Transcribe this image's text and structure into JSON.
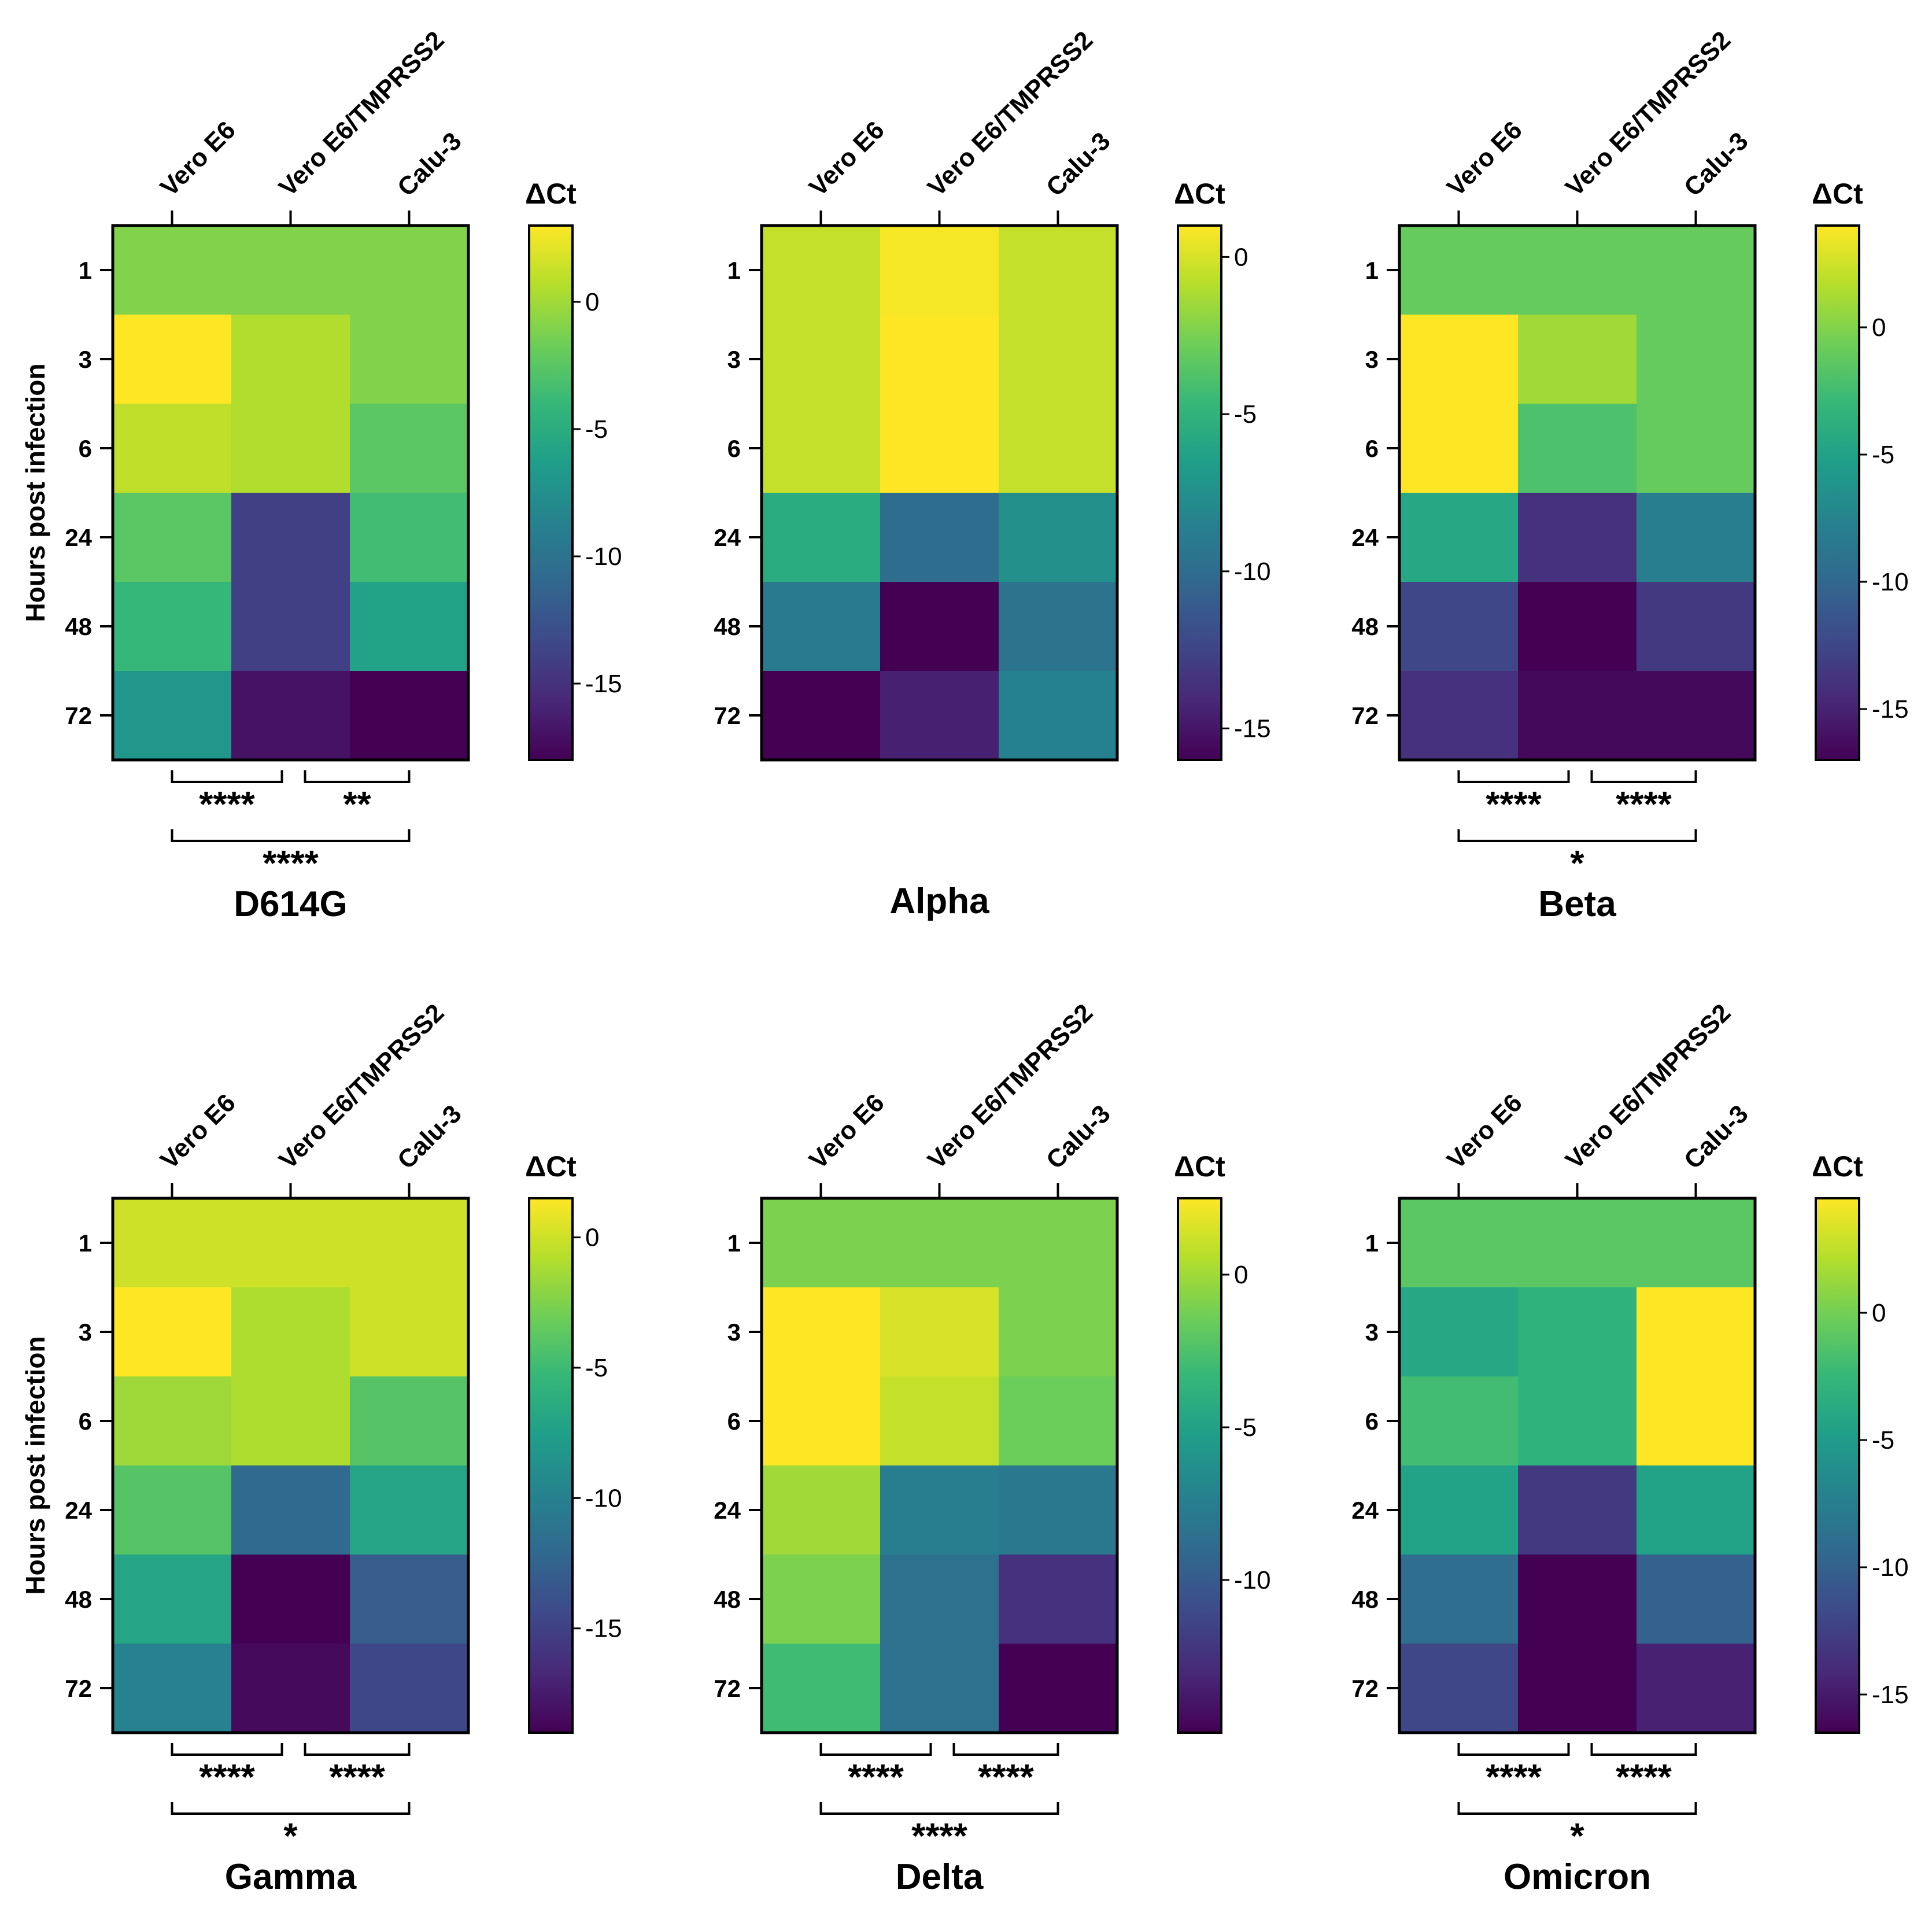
{
  "chart_data": [
    {
      "type": "heatmap",
      "title": "D614G",
      "columns": [
        "Vero E6",
        "Vero E6/TMPRSS2",
        "Calu-3"
      ],
      "rows": [
        "1",
        "3",
        "6",
        "24",
        "48",
        "72"
      ],
      "ylabel": "Hours post infection",
      "colorbar": {
        "label": "ΔCt",
        "ticks": [
          0,
          -5,
          -10,
          -15
        ],
        "range": [
          -18,
          3
        ],
        "colormap": "viridis"
      },
      "values": [
        [
          -1.0,
          -1.0,
          -1.0
        ],
        [
          3.0,
          0.5,
          -1.0
        ],
        [
          1.0,
          0.5,
          -2.5
        ],
        [
          -2.5,
          -14.0,
          -3.5
        ],
        [
          -4.0,
          -14.0,
          -6.0
        ],
        [
          -7.0,
          -17.0,
          -18.0
        ]
      ],
      "significance": [
        {
          "pair": [
            "Vero E6",
            "Vero E6/TMPRSS2"
          ],
          "label": "****"
        },
        {
          "pair": [
            "Vero E6/TMPRSS2",
            "Calu-3"
          ],
          "label": "**"
        },
        {
          "pair": [
            "Vero E6",
            "Calu-3"
          ],
          "label": "****"
        }
      ]
    },
    {
      "type": "heatmap",
      "title": "Alpha",
      "columns": [
        "Vero E6",
        "Vero E6/TMPRSS2",
        "Calu-3"
      ],
      "rows": [
        "1",
        "3",
        "6",
        "24",
        "48",
        "72"
      ],
      "ylabel": "",
      "colorbar": {
        "label": "ΔCt",
        "ticks": [
          0,
          -5,
          -10,
          -15
        ],
        "range": [
          -16,
          1
        ],
        "colormap": "viridis"
      },
      "values": [
        [
          -0.5,
          0.8,
          -0.5
        ],
        [
          -0.5,
          1.0,
          -0.5
        ],
        [
          -0.5,
          1.0,
          -0.5
        ],
        [
          -5.5,
          -10.0,
          -7.5
        ],
        [
          -9.0,
          -16.0,
          -9.5
        ],
        [
          -16.0,
          -14.5,
          -8.5
        ]
      ],
      "significance": []
    },
    {
      "type": "heatmap",
      "title": "Beta",
      "columns": [
        "Vero E6",
        "Vero E6/TMPRSS2",
        "Calu-3"
      ],
      "rows": [
        "1",
        "3",
        "6",
        "24",
        "48",
        "72"
      ],
      "ylabel": "",
      "colorbar": {
        "label": "ΔCt",
        "ticks": [
          0,
          -5,
          -10,
          -15
        ],
        "range": [
          -17,
          4
        ],
        "colormap": "viridis"
      },
      "values": [
        [
          -1.0,
          -1.0,
          -1.0
        ],
        [
          4.0,
          1.0,
          -1.0
        ],
        [
          4.0,
          -2.0,
          -1.0
        ],
        [
          -4.5,
          -14.0,
          -8.0
        ],
        [
          -12.5,
          -17.0,
          -13.5
        ],
        [
          -14.0,
          -16.5,
          -16.5
        ]
      ],
      "significance": [
        {
          "pair": [
            "Vero E6",
            "Vero E6/TMPRSS2"
          ],
          "label": "****"
        },
        {
          "pair": [
            "Vero E6/TMPRSS2",
            "Calu-3"
          ],
          "label": "****"
        },
        {
          "pair": [
            "Vero E6",
            "Calu-3"
          ],
          "label": "*"
        }
      ]
    },
    {
      "type": "heatmap",
      "title": "Gamma",
      "columns": [
        "Vero E6",
        "Vero E6/TMPRSS2",
        "Calu-3"
      ],
      "rows": [
        "1",
        "3",
        "6",
        "24",
        "48",
        "72"
      ],
      "ylabel": "Hours post infection",
      "colorbar": {
        "label": "ΔCt",
        "ticks": [
          0,
          -5,
          -10,
          -15
        ],
        "range": [
          -19,
          1.5
        ],
        "colormap": "viridis"
      },
      "values": [
        [
          0.0,
          0.0,
          0.0
        ],
        [
          1.5,
          -1.0,
          0.0
        ],
        [
          -1.5,
          -1.0,
          -4.0
        ],
        [
          -4.0,
          -12.0,
          -7.0
        ],
        [
          -7.0,
          -19.0,
          -13.0
        ],
        [
          -10.0,
          -18.5,
          -14.5
        ]
      ],
      "significance": [
        {
          "pair": [
            "Vero E6",
            "Vero E6/TMPRSS2"
          ],
          "label": "****"
        },
        {
          "pair": [
            "Vero E6/TMPRSS2",
            "Calu-3"
          ],
          "label": "****"
        },
        {
          "pair": [
            "Vero E6",
            "Calu-3"
          ],
          "label": "*"
        }
      ]
    },
    {
      "type": "heatmap",
      "title": "Delta",
      "columns": [
        "Vero E6",
        "Vero E6/TMPRSS2",
        "Calu-3"
      ],
      "rows": [
        "1",
        "3",
        "6",
        "24",
        "48",
        "72"
      ],
      "ylabel": "",
      "colorbar": {
        "label": "ΔCt",
        "ticks": [
          0,
          -5,
          -10
        ],
        "range": [
          -15,
          2.5
        ],
        "colormap": "viridis"
      },
      "values": [
        [
          -1.0,
          -1.0,
          -1.0
        ],
        [
          2.5,
          1.5,
          -1.0
        ],
        [
          2.5,
          1.0,
          -1.5
        ],
        [
          0.0,
          -7.5,
          -8.0
        ],
        [
          -1.0,
          -8.5,
          -12.5
        ],
        [
          -3.0,
          -8.5,
          -15.0
        ]
      ],
      "significance": [
        {
          "pair": [
            "Vero E6",
            "Vero E6/TMPRSS2"
          ],
          "label": "****"
        },
        {
          "pair": [
            "Vero E6/TMPRSS2",
            "Calu-3"
          ],
          "label": "****"
        },
        {
          "pair": [
            "Vero E6",
            "Calu-3"
          ],
          "label": "****"
        }
      ]
    },
    {
      "type": "heatmap",
      "title": "Omicron",
      "columns": [
        "Vero E6",
        "Vero E6/TMPRSS2",
        "Calu-3"
      ],
      "rows": [
        "1",
        "3",
        "6",
        "24",
        "48",
        "72"
      ],
      "ylabel": "",
      "colorbar": {
        "label": "ΔCt",
        "ticks": [
          0,
          -5,
          -10,
          -15
        ],
        "range": [
          -16.5,
          4.5
        ],
        "colormap": "viridis"
      },
      "values": [
        [
          -1.0,
          -1.0,
          -1.0
        ],
        [
          -4.0,
          -3.0,
          4.5
        ],
        [
          -2.0,
          -3.0,
          4.5
        ],
        [
          -4.5,
          -13.0,
          -4.5
        ],
        [
          -9.0,
          -16.5,
          -10.0
        ],
        [
          -12.0,
          -16.5,
          -14.5
        ]
      ],
      "significance": [
        {
          "pair": [
            "Vero E6",
            "Vero E6/TMPRSS2"
          ],
          "label": "****"
        },
        {
          "pair": [
            "Vero E6/TMPRSS2",
            "Calu-3"
          ],
          "label": "****"
        },
        {
          "pair": [
            "Vero E6",
            "Calu-3"
          ],
          "label": "*"
        }
      ]
    }
  ]
}
